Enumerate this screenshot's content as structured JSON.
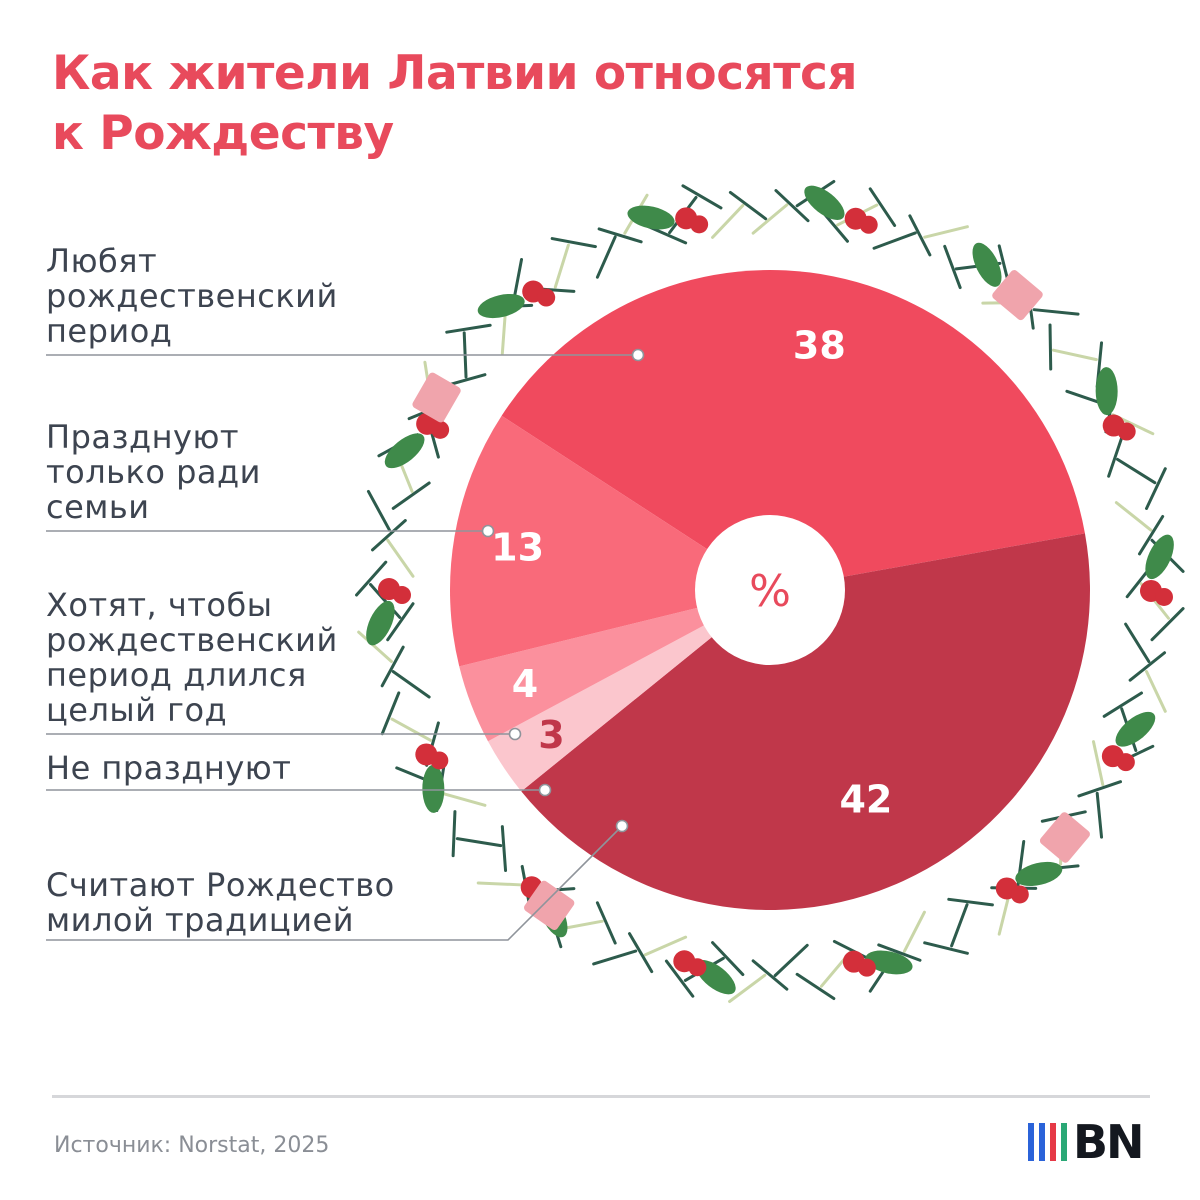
{
  "title": {
    "line1": "Как жители Латвии относятся",
    "line2": "к Рождеству"
  },
  "chart_data": {
    "type": "pie",
    "style": "donut",
    "center_label": "%",
    "slices": [
      {
        "label": "Любят\nрождественский\nпериод",
        "value": 38,
        "color": "#f04a5e",
        "value_color": "#ffffff"
      },
      {
        "label": "Считают Рождество\nмилой традицией",
        "value": 42,
        "color": "#c0374a",
        "value_color": "#ffffff"
      },
      {
        "label": "Не празднуют",
        "value": 3,
        "color": "#fbc6cd",
        "value_color": "#c0374a"
      },
      {
        "label": "Хотят, чтобы\nрождественский\nпериод длился\nцелый год",
        "value": 4,
        "color": "#fb909d",
        "value_color": "#ffffff"
      },
      {
        "label": "Празднуют\nтолько ради\nсемьи",
        "value": 13,
        "color": "#f96a7a",
        "value_color": "#ffffff"
      }
    ]
  },
  "legend": {
    "text_color": "#3d4450",
    "line_color": "#8f949b"
  },
  "decor": {
    "wreath_colors": {
      "needle": "#2d5b4c",
      "light_needle": "#c9d6a8",
      "holly": "#3f8a4a",
      "berry": "#d32f3a",
      "gift": "#f0a4ac"
    }
  },
  "footer": {
    "source": "Источник: Norstat, 2025",
    "logo_text": "BN",
    "logo_bar_colors": [
      "#2b63d9",
      "#2b63d9",
      "#e63946",
      "#2aa876"
    ]
  }
}
